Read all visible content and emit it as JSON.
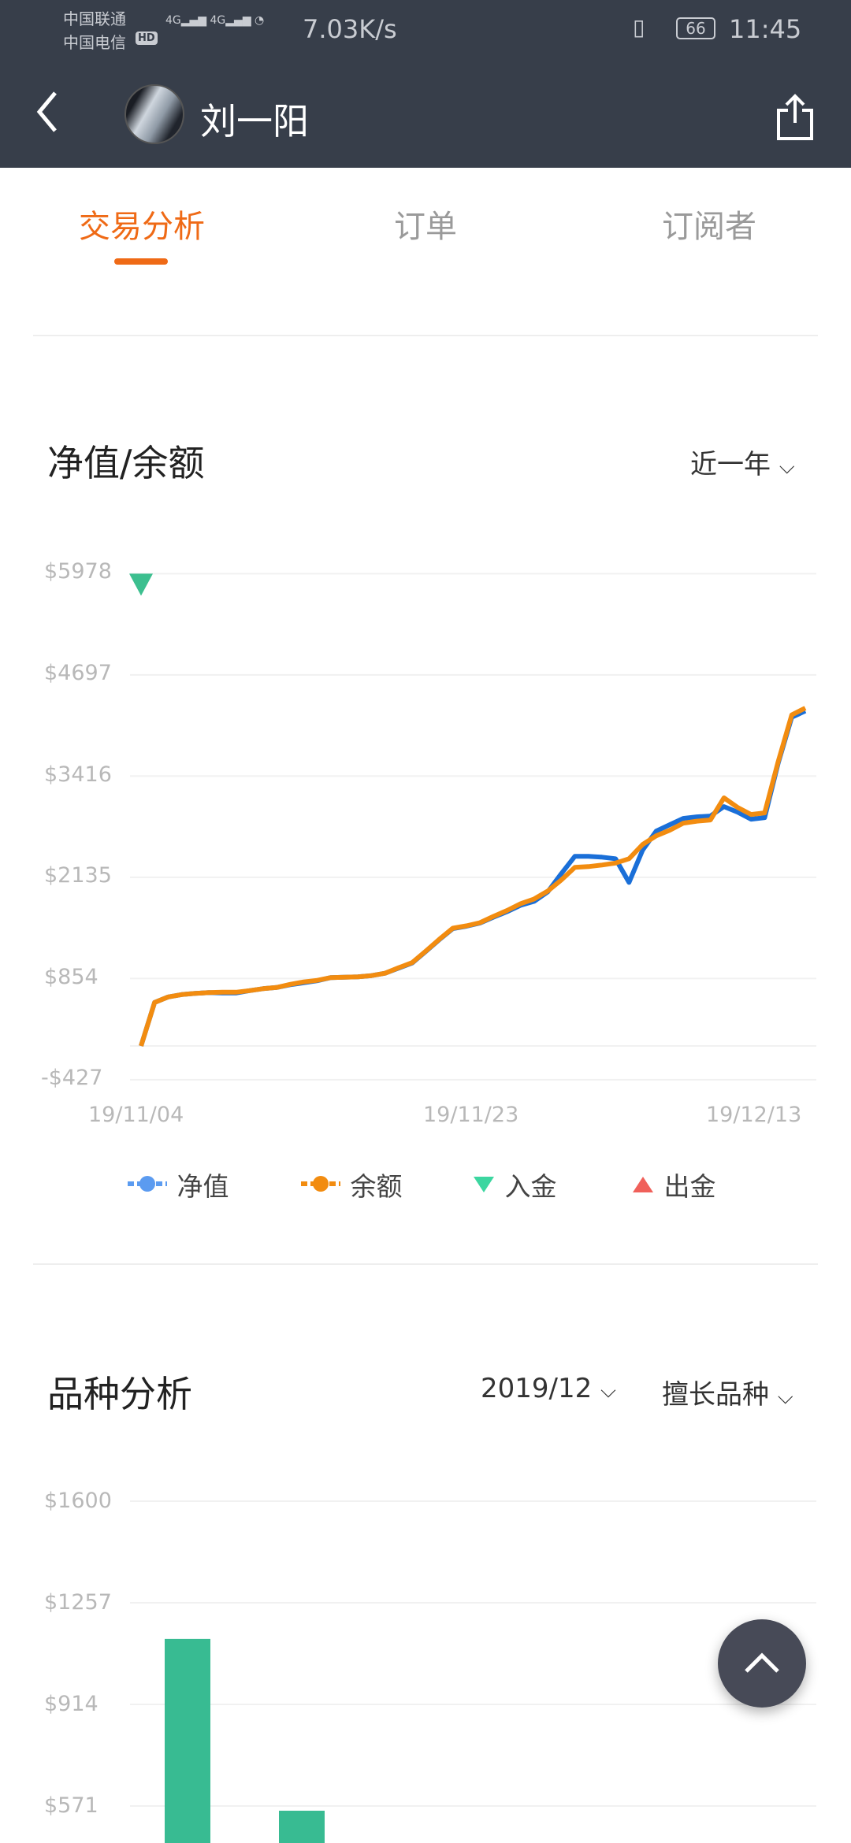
{
  "status_bar": {
    "carrier1": "中国联通",
    "carrier2": "中国电信",
    "hd_badge": "HD",
    "signal": "4G",
    "net_speed": "7.03K/s",
    "battery": "66",
    "time": "11:45"
  },
  "header": {
    "user_name": "刘一阳",
    "back_icon": "chevron-left-icon",
    "share_icon": "share-icon"
  },
  "tabs": [
    {
      "label": "交易分析",
      "active": true
    },
    {
      "label": "订单",
      "active": false
    },
    {
      "label": "订阅者",
      "active": false
    }
  ],
  "colors": {
    "accent": "#ef6a16",
    "header_bg": "#373e4a",
    "net_value": "#1a6fd8",
    "balance": "#f28c10",
    "deposit": "#3cbf8f",
    "withdrawal": "#f0605a",
    "bar": "#38bb92"
  },
  "net_balance": {
    "title": "净值/余额",
    "range_select": "近一年"
  },
  "variety": {
    "title": "品种分析",
    "month_select": "2019/12",
    "type_select": "擅长品种"
  },
  "chart_data": [
    {
      "type": "line",
      "y_ticks": [
        "$5978",
        "$4697",
        "$3416",
        "$2135",
        "$854",
        "-$427"
      ],
      "y_tick_values": [
        5978,
        4697,
        3416,
        2135,
        854,
        -427
      ],
      "ylim": [
        -427,
        5978
      ],
      "x_ticks": [
        "19/11/04",
        "19/11/23",
        "19/12/13"
      ],
      "grid": true,
      "legend": [
        "净值",
        "余额",
        "入金",
        "出金"
      ],
      "legend_placement": "bottom",
      "series": [
        {
          "name": "净值",
          "values": [
            0,
            550,
            620,
            650,
            665,
            675,
            670,
            670,
            700,
            725,
            740,
            775,
            800,
            825,
            865,
            870,
            875,
            890,
            920,
            985,
            1050,
            1195,
            1345,
            1485,
            1515,
            1555,
            1630,
            1700,
            1780,
            1830,
            1950,
            2180,
            2400,
            2400,
            2390,
            2370,
            2070,
            2480,
            2720,
            2800,
            2880,
            2900,
            2910,
            3030,
            2960,
            2870,
            2890,
            3580,
            4160,
            4240
          ]
        },
        {
          "name": "余额",
          "values": [
            0,
            550,
            620,
            650,
            665,
            675,
            680,
            680,
            700,
            725,
            740,
            780,
            810,
            830,
            865,
            870,
            875,
            890,
            920,
            990,
            1055,
            1200,
            1350,
            1490,
            1520,
            1560,
            1640,
            1715,
            1800,
            1860,
            1960,
            2100,
            2260,
            2270,
            2290,
            2315,
            2370,
            2550,
            2660,
            2730,
            2820,
            2845,
            2860,
            3140,
            3020,
            2930,
            2950,
            3600,
            4190,
            4277
          ]
        }
      ],
      "markers": [
        {
          "name": "入金",
          "index": 0,
          "value": 5978
        }
      ]
    },
    {
      "type": "bar",
      "y_ticks": [
        "$1600",
        "$1257",
        "$914",
        "$571"
      ],
      "y_tick_values": [
        1600,
        1257,
        914,
        571
      ],
      "grid": true,
      "values": [
        1135,
        555
      ]
    }
  ],
  "legend_labels": {
    "net": "净值",
    "balance": "余额",
    "deposit": "入金",
    "withdrawal": "出金"
  }
}
